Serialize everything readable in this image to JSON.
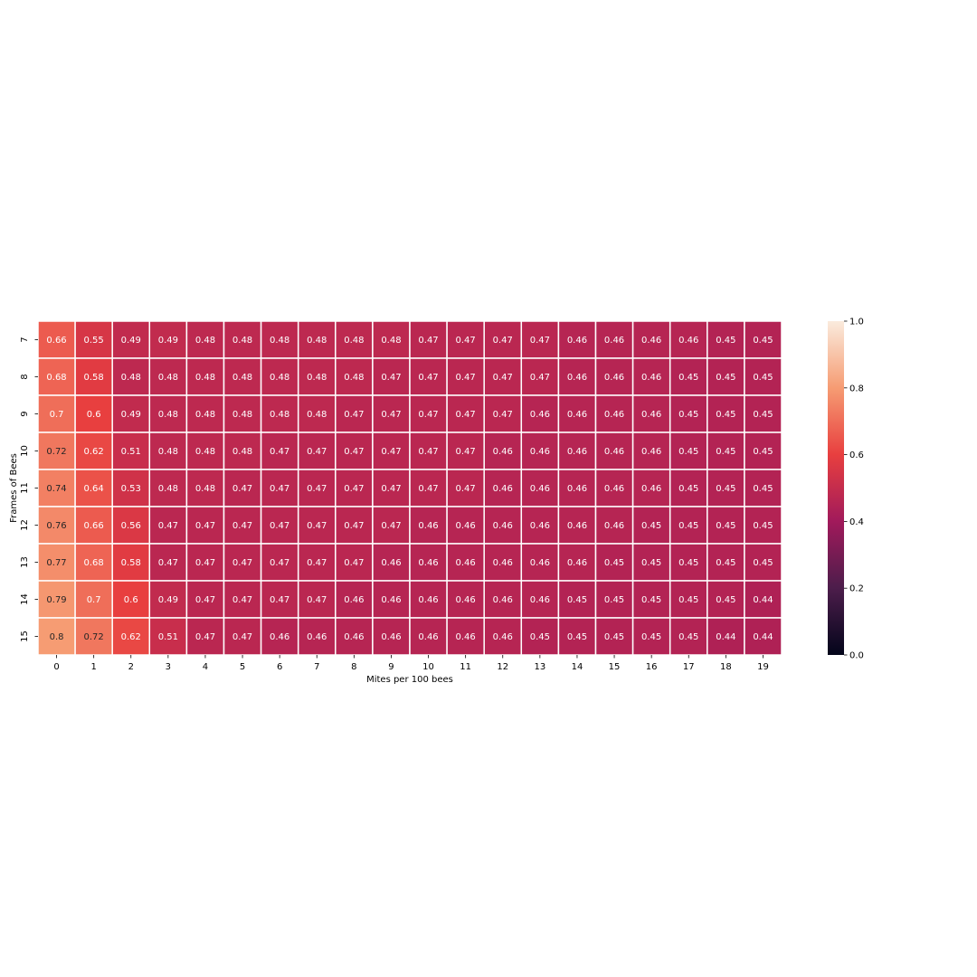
{
  "chart_data": {
    "type": "heatmap",
    "title": "",
    "xlabel": "Mites per 100 bees",
    "ylabel": "Frames of Bees",
    "x_categories": [
      "0",
      "1",
      "2",
      "3",
      "4",
      "5",
      "6",
      "7",
      "8",
      "9",
      "10",
      "11",
      "12",
      "13",
      "14",
      "15",
      "16",
      "17",
      "18",
      "19"
    ],
    "y_categories": [
      "7",
      "8",
      "9",
      "10",
      "11",
      "12",
      "13",
      "14",
      "15"
    ],
    "values": [
      [
        0.66,
        0.55,
        0.49,
        0.49,
        0.48,
        0.48,
        0.48,
        0.48,
        0.48,
        0.48,
        0.47,
        0.47,
        0.47,
        0.47,
        0.46,
        0.46,
        0.46,
        0.46,
        0.45,
        0.45
      ],
      [
        0.68,
        0.58,
        0.48,
        0.48,
        0.48,
        0.48,
        0.48,
        0.48,
        0.48,
        0.47,
        0.47,
        0.47,
        0.47,
        0.47,
        0.46,
        0.46,
        0.46,
        0.45,
        0.45,
        0.45
      ],
      [
        0.7,
        0.6,
        0.49,
        0.48,
        0.48,
        0.48,
        0.48,
        0.48,
        0.47,
        0.47,
        0.47,
        0.47,
        0.47,
        0.46,
        0.46,
        0.46,
        0.46,
        0.45,
        0.45,
        0.45
      ],
      [
        0.72,
        0.62,
        0.51,
        0.48,
        0.48,
        0.48,
        0.47,
        0.47,
        0.47,
        0.47,
        0.47,
        0.47,
        0.46,
        0.46,
        0.46,
        0.46,
        0.46,
        0.45,
        0.45,
        0.45
      ],
      [
        0.74,
        0.64,
        0.53,
        0.48,
        0.48,
        0.47,
        0.47,
        0.47,
        0.47,
        0.47,
        0.47,
        0.47,
        0.46,
        0.46,
        0.46,
        0.46,
        0.46,
        0.45,
        0.45,
        0.45
      ],
      [
        0.76,
        0.66,
        0.56,
        0.47,
        0.47,
        0.47,
        0.47,
        0.47,
        0.47,
        0.47,
        0.46,
        0.46,
        0.46,
        0.46,
        0.46,
        0.46,
        0.45,
        0.45,
        0.45,
        0.45
      ],
      [
        0.77,
        0.68,
        0.58,
        0.47,
        0.47,
        0.47,
        0.47,
        0.47,
        0.47,
        0.46,
        0.46,
        0.46,
        0.46,
        0.46,
        0.46,
        0.45,
        0.45,
        0.45,
        0.45,
        0.45
      ],
      [
        0.79,
        0.7,
        0.6,
        0.49,
        0.47,
        0.47,
        0.47,
        0.47,
        0.46,
        0.46,
        0.46,
        0.46,
        0.46,
        0.46,
        0.45,
        0.45,
        0.45,
        0.45,
        0.45,
        0.44
      ],
      [
        0.8,
        0.72,
        0.62,
        0.51,
        0.47,
        0.47,
        0.46,
        0.46,
        0.46,
        0.46,
        0.46,
        0.46,
        0.46,
        0.45,
        0.45,
        0.45,
        0.45,
        0.45,
        0.44,
        0.44
      ]
    ],
    "colorbar": {
      "vmin": 0.0,
      "vmax": 1.0,
      "ticks": [
        "0.0",
        "0.2",
        "0.4",
        "0.6",
        "0.8",
        "1.0"
      ]
    },
    "colormap": "rocket",
    "colormap_stops": [
      "#03051a",
      "#4c1d4b",
      "#a11a5b",
      "#e83f3f",
      "#f69c73",
      "#faebdd"
    ],
    "cell_border_color": "#ffffff",
    "grid": false
  }
}
